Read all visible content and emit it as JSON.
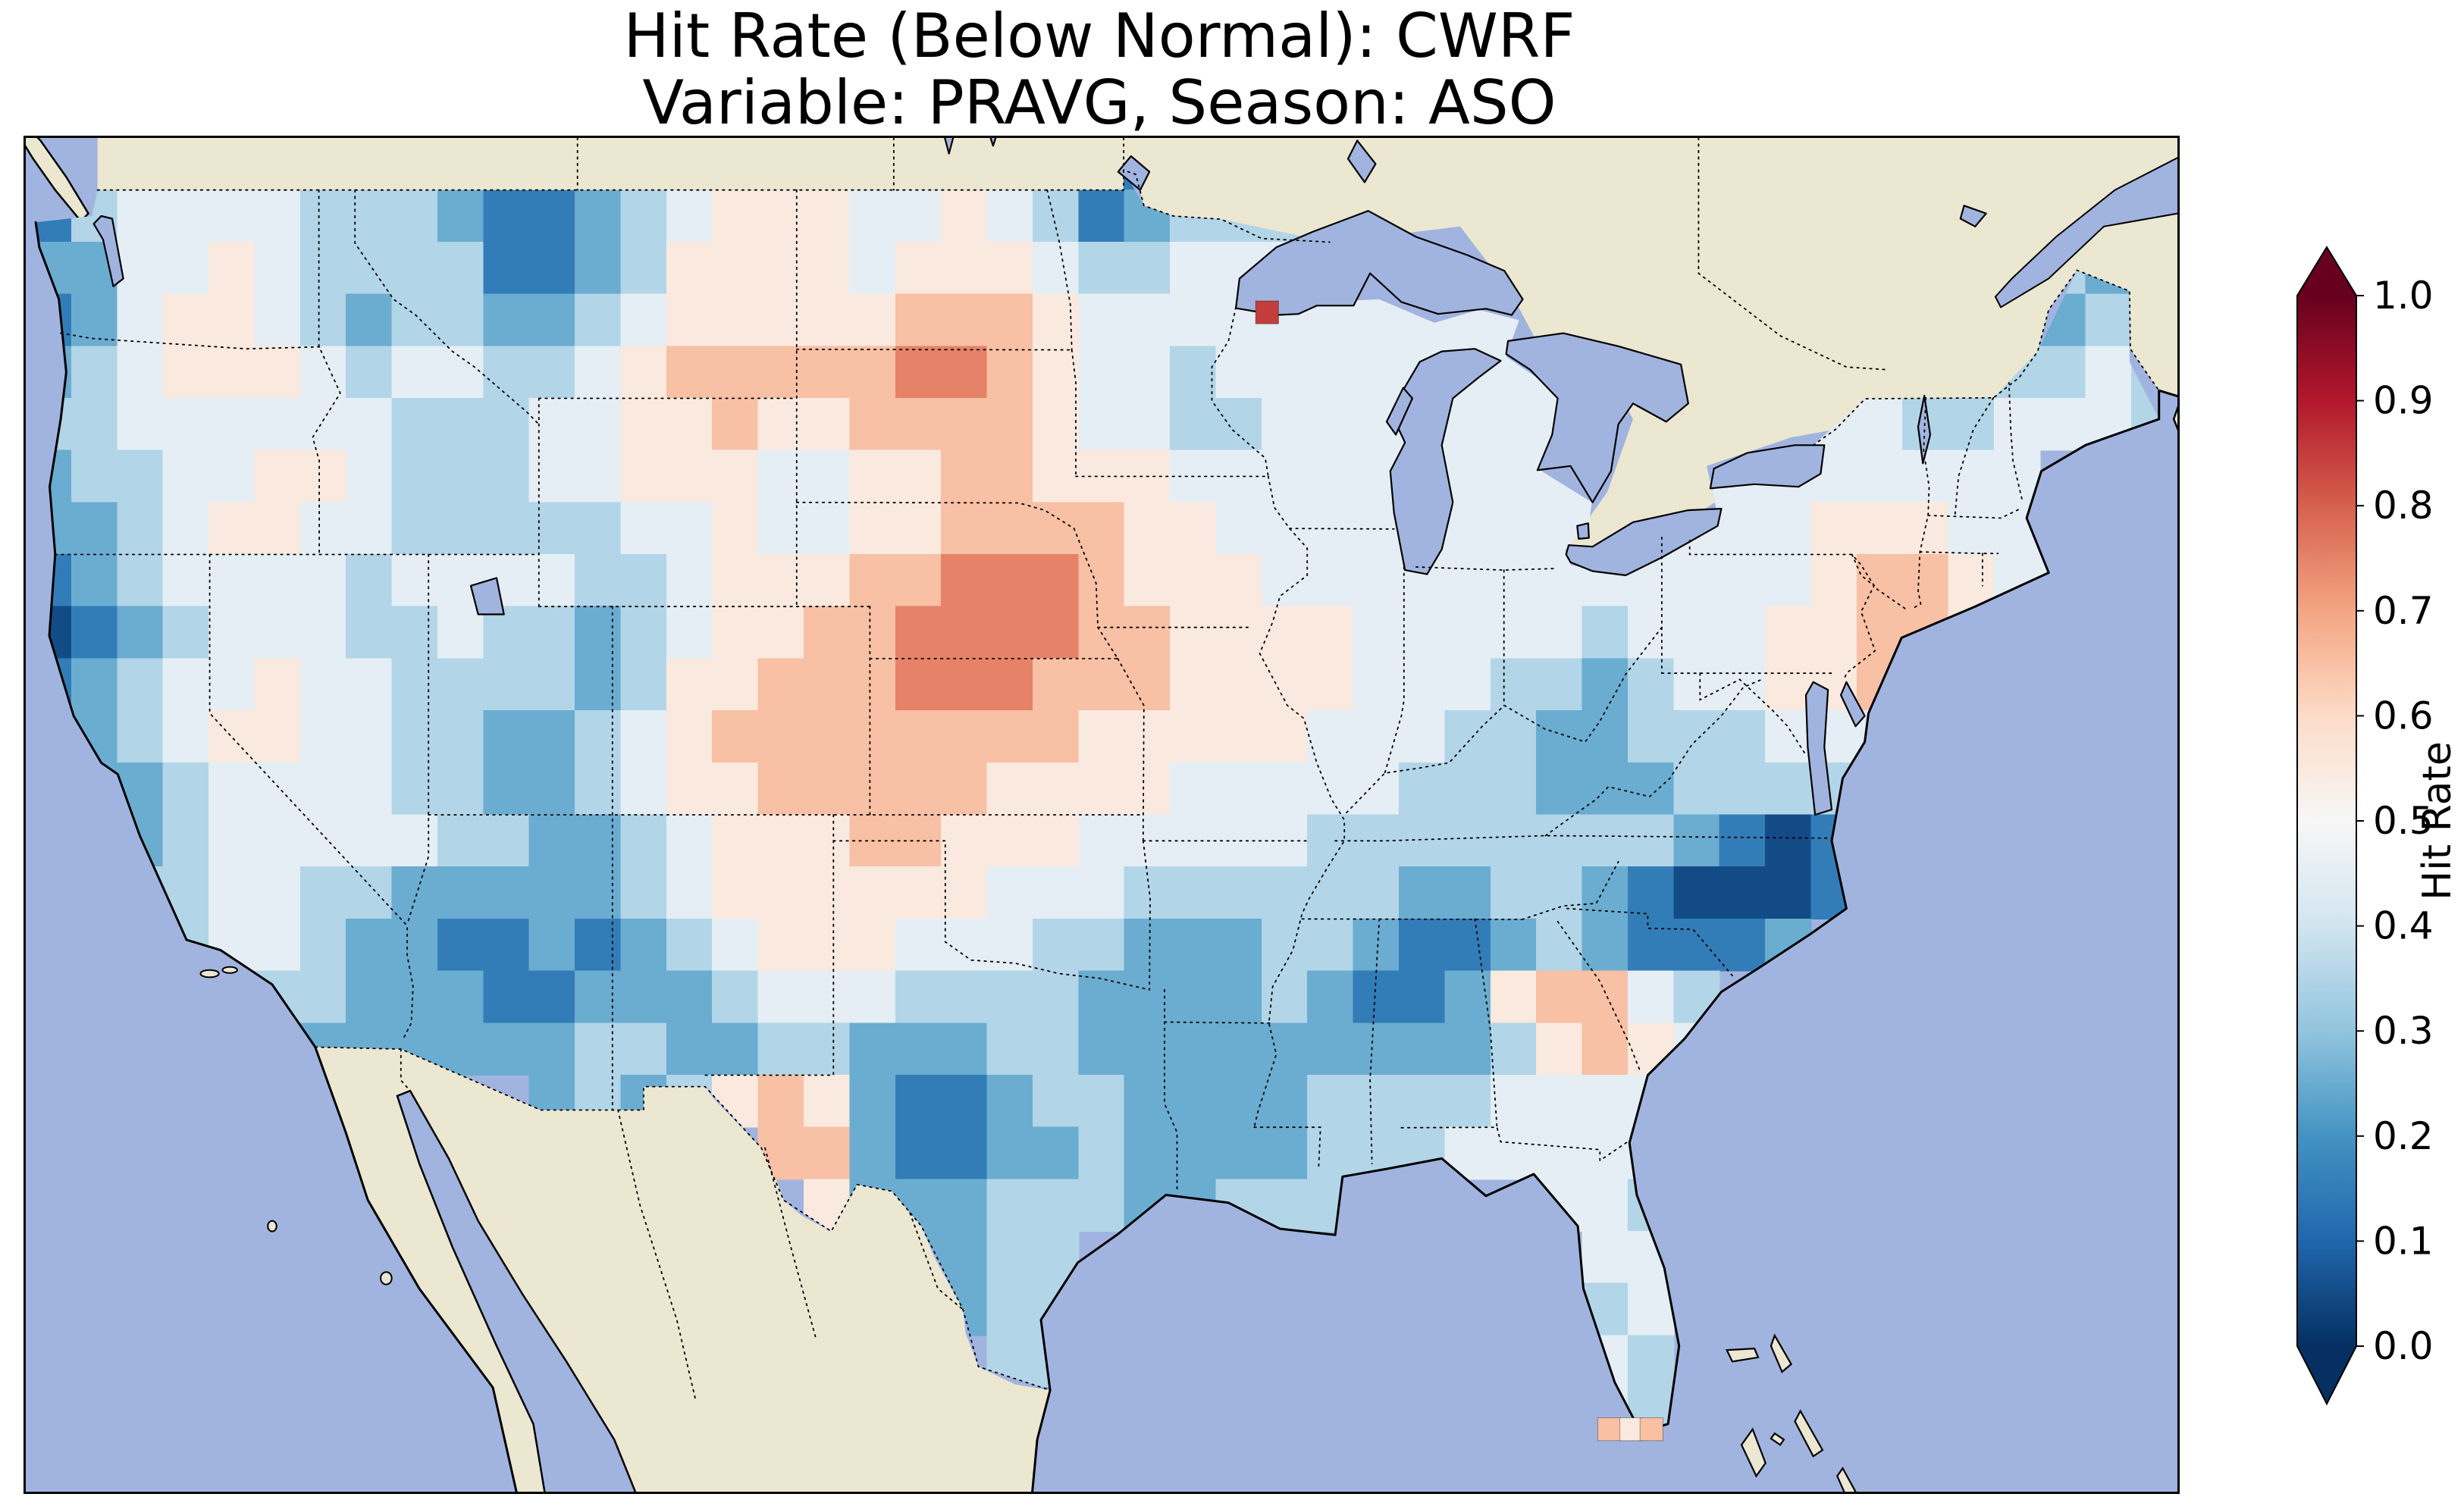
{
  "title": {
    "line1": "Hit Rate (Below Normal): CWRF",
    "line2": "Variable: PRAVG, Season: ASO"
  },
  "colorbar": {
    "label": "Hit Rate",
    "ticks": [
      "1.0",
      "0.9",
      "0.8",
      "0.7",
      "0.6",
      "0.5",
      "0.4",
      "0.3",
      "0.2",
      "0.1",
      "0.0"
    ],
    "min": 0.0,
    "max": 1.0,
    "extend": "both"
  },
  "colors": {
    "figure_bg": "#ffffff",
    "ocean": "#a1b4df",
    "land": "#ebe7d1",
    "coastline": "#000000",
    "border_lines": "#000000",
    "cmap_name": "RdBu_r",
    "cmap_stops": [
      [
        0.0,
        "#053061"
      ],
      [
        0.1,
        "#2166ac"
      ],
      [
        0.2,
        "#4393c3"
      ],
      [
        0.3,
        "#92c5de"
      ],
      [
        0.4,
        "#d1e5f0"
      ],
      [
        0.5,
        "#f7f7f7"
      ],
      [
        0.6,
        "#fddbc7"
      ],
      [
        0.7,
        "#f4a582"
      ],
      [
        0.8,
        "#d6604d"
      ],
      [
        0.9,
        "#b2182b"
      ],
      [
        1.0,
        "#67001f"
      ]
    ]
  },
  "chart_data": {
    "type": "heatmap",
    "title": "Hit Rate (Below Normal): CWRF — Variable: PRAVG, Season: ASO",
    "value_label": "Hit Rate",
    "value_range": [
      0.0,
      1.0
    ],
    "extent": {
      "lon_min": -125.0,
      "lon_max": -66.5,
      "lat_min": 24.0,
      "lat_max": 50.0
    },
    "grid": {
      "cols": 47,
      "rows": 26,
      "cell_values_encoding": "each char is one grid cell, left=west, top=north; digit d means hit rate = 0.05 + 0.1*d ; '.' = no data (outside CONUS)",
      "rows_top_to_bottom": [
        ".......................01......................",
        "1344443332112345554454312333...................",
        "22445433331123555545554334444444............32.",
        "124554323322345555566654444444444..........323.",
        "2345554344334566666776544344444444.......433343",
        "33444444333445565566665443344444444...444334443",
        "23344554333445554455665554444444444.44444444...",
        "223455443333344544556666554444444444444555444..",
        "123444434444334555667776555444444444444566544..",
        "0123444334332345566777766555544444344455665....",
        "123445443333235566677766655554443323445565.....",
        "22345544332234566666666555554443322333444......",
        ".2234444332234556666655554444433322233333......",
        "..23444443322345556655544444333333332101.......",
        "..33443322222345555554443333332233210001.......",
        "...344322112123455544433222332112321112........",
        ".....33222112223444333322223211256643..........",
        "......2222223322332223322222222235654...........",
        "...........2323565211233222233334444...........",
        "................66211223222233344444...........",
        ".................522233322333....443...........",
        "...................2233...........44...........",
        "....................233...........34...........",
        ".....................33...........43...........",
        "......................2...........43...........",
        "..............................................."
      ]
    },
    "isolated_cells": [
      {
        "lon": -91.25,
        "lat": 46.65,
        "value": 0.85
      },
      {
        "lon": -81.95,
        "lat": 25.2,
        "value": 0.65
      },
      {
        "lon": -81.35,
        "lat": 25.2,
        "value": 0.55
      },
      {
        "lon": -80.8,
        "lat": 25.2,
        "value": 0.65
      }
    ],
    "notable_features": {
      "high_hit_rate_regions": [
        "central Nebraska/Kansas (~0.7-0.75)",
        "western Dakotas/E Montana (~0.65-0.75)",
        "New Jersey / NYC area (~0.6-0.65)",
        "central Georgia (~0.6-0.65)",
        "Big Bend Texas border (~0.6-0.65)"
      ],
      "low_hit_rate_regions": [
        "eastern North Carolina coast (~0.05-0.1)",
        "Alabama/Georgia border (~0.1-0.15)",
        "west Texas (~0.1-0.2)",
        "northern California coast (~0.05-0.15)",
        "NW Montana/Idaho (~0.1-0.2)",
        "Arizona (~0.1-0.2)"
      ]
    }
  }
}
